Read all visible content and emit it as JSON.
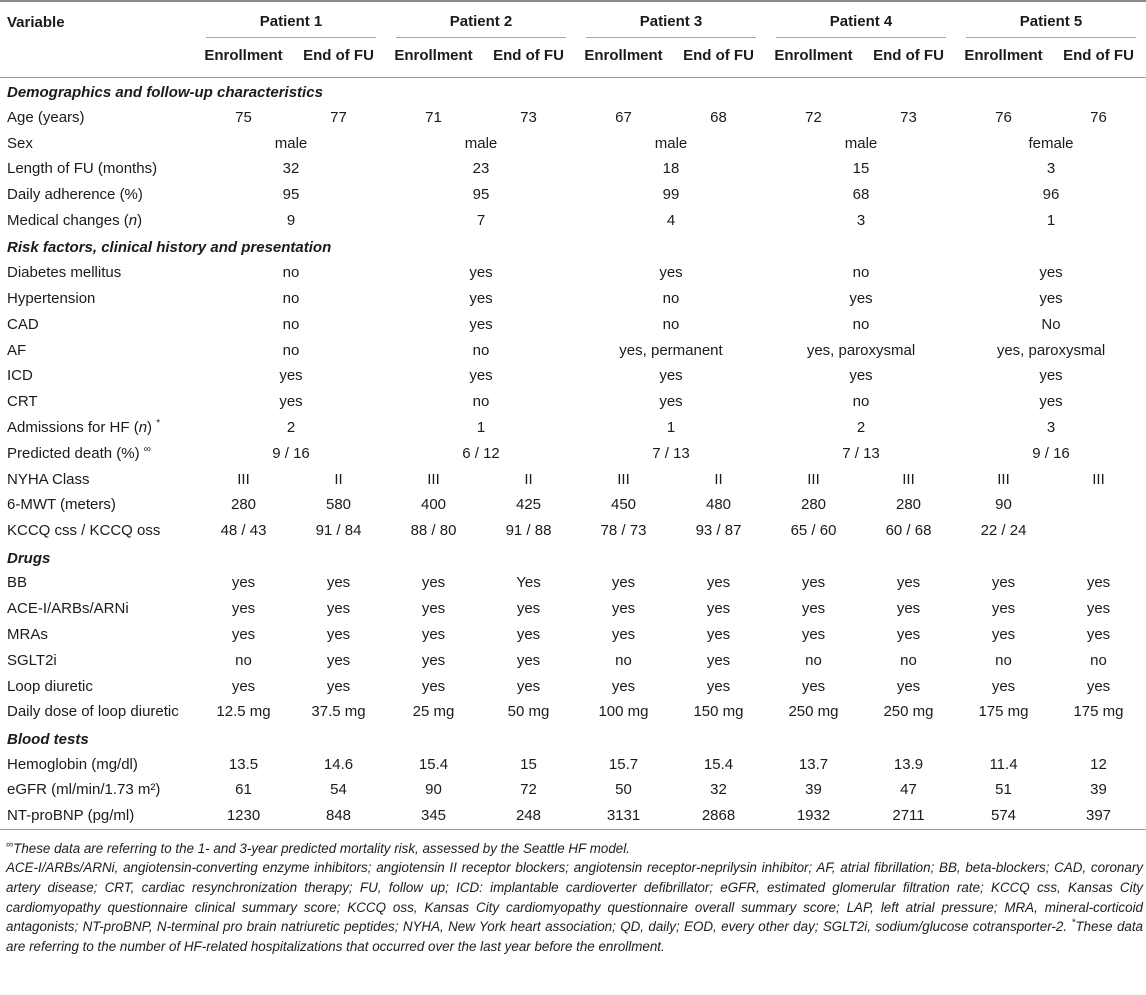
{
  "table": {
    "variable_header": "Variable",
    "patients": [
      "Patient 1",
      "Patient 2",
      "Patient 3",
      "Patient 4",
      "Patient 5"
    ],
    "subcolumns": [
      "Enrollment",
      "End of FU"
    ],
    "rows": [
      {
        "type": "section",
        "label": "Demographics and follow-up characteristics"
      },
      {
        "type": "pair",
        "label": "Age (years)",
        "values": [
          [
            "75",
            "77"
          ],
          [
            "71",
            "73"
          ],
          [
            "67",
            "68"
          ],
          [
            "72",
            "73"
          ],
          [
            "76",
            "76"
          ]
        ]
      },
      {
        "type": "span",
        "label": "Sex",
        "values": [
          "male",
          "male",
          "male",
          "male",
          "female"
        ]
      },
      {
        "type": "span",
        "label": "Length of FU (months)",
        "values": [
          "32",
          "23",
          "18",
          "15",
          "3"
        ]
      },
      {
        "type": "span",
        "label": "Daily adherence (%)",
        "values": [
          "95",
          "95",
          "99",
          "68",
          "96"
        ]
      },
      {
        "type": "span",
        "label": "Medical changes (n)",
        "values": [
          "9",
          "7",
          "4",
          "3",
          "1"
        ]
      },
      {
        "type": "section",
        "label": "Risk factors, clinical history and presentation"
      },
      {
        "type": "span",
        "label": "Diabetes mellitus",
        "values": [
          "no",
          "yes",
          "yes",
          "no",
          "yes"
        ]
      },
      {
        "type": "span",
        "label": "Hypertension",
        "values": [
          "no",
          "yes",
          "no",
          "yes",
          "yes"
        ]
      },
      {
        "type": "span",
        "label": "CAD",
        "values": [
          "no",
          "yes",
          "no",
          "no",
          "No"
        ]
      },
      {
        "type": "span",
        "label": "AF",
        "values": [
          "no",
          "no",
          "yes, permanent",
          "yes, paroxysmal",
          "yes, paroxysmal"
        ]
      },
      {
        "type": "span",
        "label": "ICD",
        "values": [
          "yes",
          "yes",
          "yes",
          "yes",
          "yes"
        ]
      },
      {
        "type": "span",
        "label": "CRT",
        "values": [
          "yes",
          "no",
          "yes",
          "no",
          "yes"
        ]
      },
      {
        "type": "span",
        "label": "Admissions for HF (n)",
        "sup": "*",
        "values": [
          "2",
          "1",
          "1",
          "2",
          "3"
        ]
      },
      {
        "type": "span",
        "label": "Predicted death (%)",
        "sup": "∞",
        "values": [
          "9 / 16",
          "6 / 12",
          "7 / 13",
          "7 / 13",
          "9 / 16"
        ]
      },
      {
        "type": "pair",
        "label": "NYHA Class",
        "values": [
          [
            "III",
            "II"
          ],
          [
            "III",
            "II"
          ],
          [
            "III",
            "II"
          ],
          [
            "III",
            "III"
          ],
          [
            "III",
            "III"
          ]
        ]
      },
      {
        "type": "pair",
        "label": "6-MWT (meters)",
        "values": [
          [
            "280",
            "580"
          ],
          [
            "400",
            "425"
          ],
          [
            "450",
            "480"
          ],
          [
            "280",
            "280"
          ],
          [
            "90",
            ""
          ]
        ]
      },
      {
        "type": "pair",
        "label": "KCCQ css / KCCQ oss",
        "values": [
          [
            "48 / 43",
            "91 / 84"
          ],
          [
            "88 / 80",
            "91 / 88"
          ],
          [
            "78 / 73",
            "93 / 87"
          ],
          [
            "65 / 60",
            "60 / 68"
          ],
          [
            "22 / 24",
            ""
          ]
        ]
      },
      {
        "type": "section",
        "label": "Drugs"
      },
      {
        "type": "pair",
        "label": "BB",
        "values": [
          [
            "yes",
            "yes"
          ],
          [
            "yes",
            "Yes"
          ],
          [
            "yes",
            "yes"
          ],
          [
            "yes",
            "yes"
          ],
          [
            "yes",
            "yes"
          ]
        ]
      },
      {
        "type": "pair",
        "label": "ACE-I/ARBs/ARNi",
        "values": [
          [
            "yes",
            "yes"
          ],
          [
            "yes",
            "yes"
          ],
          [
            "yes",
            "yes"
          ],
          [
            "yes",
            "yes"
          ],
          [
            "yes",
            "yes"
          ]
        ]
      },
      {
        "type": "pair",
        "label": "MRAs",
        "values": [
          [
            "yes",
            "yes"
          ],
          [
            "yes",
            "yes"
          ],
          [
            "yes",
            "yes"
          ],
          [
            "yes",
            "yes"
          ],
          [
            "yes",
            "yes"
          ]
        ]
      },
      {
        "type": "pair",
        "label": "SGLT2i",
        "values": [
          [
            "no",
            "yes"
          ],
          [
            "yes",
            "yes"
          ],
          [
            "no",
            "yes"
          ],
          [
            "no",
            "no"
          ],
          [
            "no",
            "no"
          ]
        ]
      },
      {
        "type": "pair",
        "label": "Loop diuretic",
        "values": [
          [
            "yes",
            "yes"
          ],
          [
            "yes",
            "yes"
          ],
          [
            "yes",
            "yes"
          ],
          [
            "yes",
            "yes"
          ],
          [
            "yes",
            "yes"
          ]
        ]
      },
      {
        "type": "pair",
        "label": "Daily dose of loop diuretic",
        "values": [
          [
            "12.5 mg",
            "37.5 mg"
          ],
          [
            "25 mg",
            "50 mg"
          ],
          [
            "100 mg",
            "150 mg"
          ],
          [
            "250 mg",
            "250 mg"
          ],
          [
            "175 mg",
            "175 mg"
          ]
        ]
      },
      {
        "type": "section",
        "label": "Blood tests"
      },
      {
        "type": "pair",
        "label": "Hemoglobin (mg/dl)",
        "values": [
          [
            "13.5",
            "14.6"
          ],
          [
            "15.4",
            "15"
          ],
          [
            "15.7",
            "15.4"
          ],
          [
            "13.7",
            "13.9"
          ],
          [
            "11.4",
            "12"
          ]
        ]
      },
      {
        "type": "pair",
        "label": "eGFR (ml/min/1.73 m²)",
        "values": [
          [
            "61",
            "54"
          ],
          [
            "90",
            "72"
          ],
          [
            "50",
            "32"
          ],
          [
            "39",
            "47"
          ],
          [
            "51",
            "39"
          ]
        ]
      },
      {
        "type": "pair",
        "label": "NT-proBNP (pg/ml)",
        "values": [
          [
            "1230",
            "848"
          ],
          [
            "345",
            "248"
          ],
          [
            "3131",
            "2868"
          ],
          [
            "1932",
            "2711"
          ],
          [
            "574",
            "397"
          ]
        ]
      }
    ]
  },
  "footnotes": [
    "∞These data are referring to the 1- and 3-year predicted mortality risk, assessed by the Seattle HF model.",
    "ACE-I/ARBs/ARNi, angiotensin-converting enzyme inhibitors; angiotensin II receptor blockers; angiotensin receptor-neprilysin inhibitor; AF, atrial fibrillation; BB, beta-blockers; CAD, coronary artery disease; CRT, cardiac resynchronization therapy; FU, follow up; ICD: implantable cardioverter defibrillator; eGFR, estimated glomerular filtration rate; KCCQ css, Kansas City cardiomyopathy questionnaire clinical summary score; KCCQ oss, Kansas City cardiomyopathy questionnaire overall summary score; LAP, left atrial pressure; MRA, mineral-corticoid antagonists; NT-proBNP, N-terminal pro brain natriuretic peptides; NYHA, New York heart association; QD, daily; EOD, every other day; SGLT2i, sodium/glucose cotransporter-2. *These data are referring to the number of HF-related hospitalizations that occurred over the last year before the enrollment."
  ]
}
